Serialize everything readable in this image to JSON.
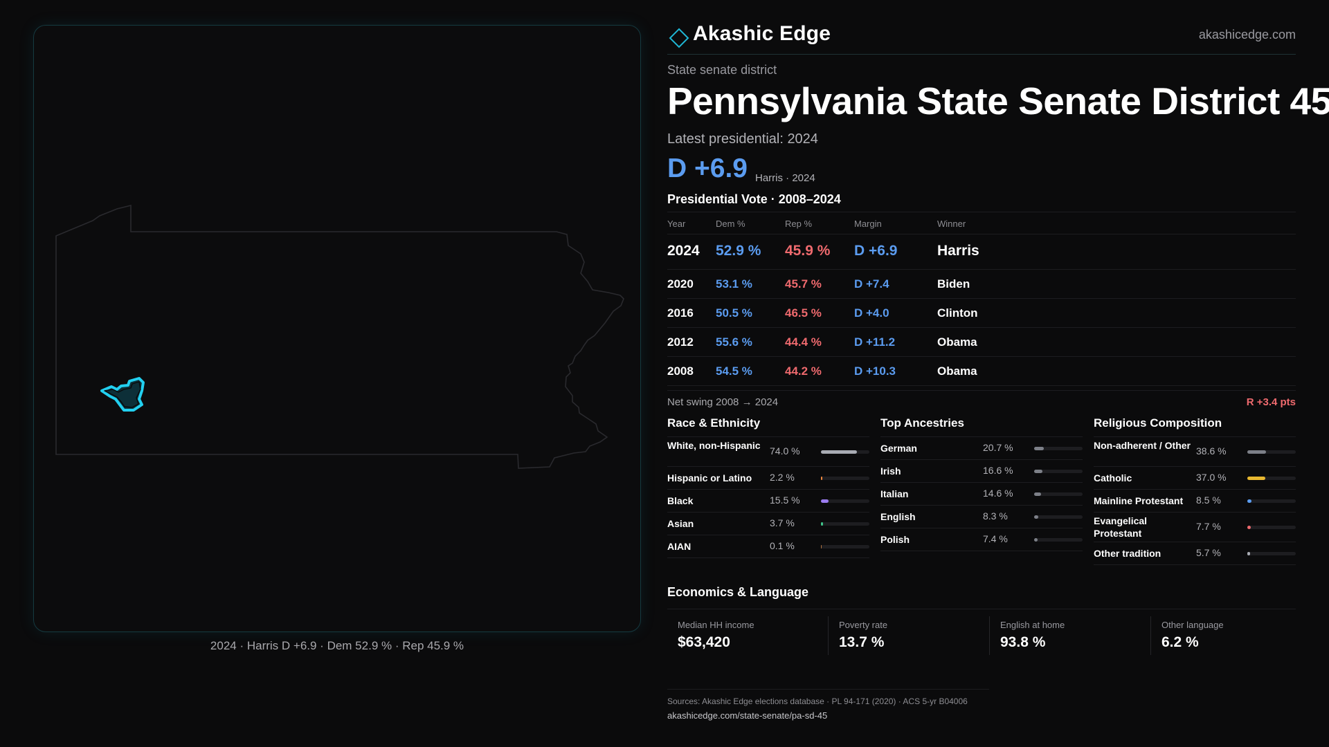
{
  "brand": {
    "name": "Akashic Edge",
    "url": "akashicedge.com",
    "accent": "#1fb6d4"
  },
  "map": {
    "caption": "2024 · Harris D +6.9 · Dem 52.9 % · Rep 45.9 %",
    "highlight_color": "#22d0f0"
  },
  "header": {
    "kicker": "State senate district",
    "title": "Pennsylvania State Senate District 45",
    "latest_label": "Latest presidential: 2024",
    "margin": "D +6.9",
    "margin_sub": "Harris · 2024"
  },
  "vote_table": {
    "title": "Presidential Vote · 2008–2024",
    "columns": [
      "Year",
      "Dem %",
      "Rep %",
      "Margin",
      "Winner"
    ],
    "rows": [
      [
        "2024",
        "52.9 %",
        "45.9 %",
        "D +6.9",
        "Harris"
      ],
      [
        "2020",
        "53.1 %",
        "45.7 %",
        "D +7.4",
        "Biden"
      ],
      [
        "2016",
        "50.5 %",
        "46.5 %",
        "D +4.0",
        "Clinton"
      ],
      [
        "2012",
        "55.6 %",
        "44.4 %",
        "D +11.2",
        "Obama"
      ],
      [
        "2008",
        "54.5 %",
        "44.2 %",
        "D +10.3",
        "Obama"
      ]
    ],
    "swing_label": "Net swing 2008 → 2024",
    "swing_value": "R +3.4 pts"
  },
  "composition": [
    {
      "title": "Race & Ethnicity",
      "rows": [
        {
          "label": "White, non-Hispanic",
          "value": "74.0 %",
          "pct": 74.0,
          "color": "#a8abb3",
          "lines": 2
        },
        {
          "label": "Hispanic or Latino",
          "value": "2.2 %",
          "pct": 2.2,
          "color": "#f0883e",
          "lines": 1
        },
        {
          "label": "Black",
          "value": "15.5 %",
          "pct": 15.5,
          "color": "#9b7cf0",
          "lines": 1
        },
        {
          "label": "Asian",
          "value": "3.7 %",
          "pct": 3.7,
          "color": "#3fc48a",
          "lines": 1
        },
        {
          "label": "AIAN",
          "value": "0.1 %",
          "pct": 0.1,
          "color": "#b0733f",
          "lines": 1
        }
      ]
    },
    {
      "title": "Top Ancestries",
      "rows": [
        {
          "label": "German",
          "value": "20.7 %",
          "pct": 20.7,
          "color": "#7d8088",
          "lines": 1
        },
        {
          "label": "Irish",
          "value": "16.6 %",
          "pct": 16.6,
          "color": "#7d8088",
          "lines": 1
        },
        {
          "label": "Italian",
          "value": "14.6 %",
          "pct": 14.6,
          "color": "#7d8088",
          "lines": 1
        },
        {
          "label": "English",
          "value": "8.3 %",
          "pct": 8.3,
          "color": "#7d8088",
          "lines": 1
        },
        {
          "label": "Polish",
          "value": "7.4 %",
          "pct": 7.4,
          "color": "#7d8088",
          "lines": 1
        }
      ]
    },
    {
      "title": "Religious Composition",
      "rows": [
        {
          "label": "Non-adherent / Other",
          "value": "38.6 %",
          "pct": 38.6,
          "color": "#7d8088",
          "lines": 2
        },
        {
          "label": "Catholic",
          "value": "37.0 %",
          "pct": 37.0,
          "color": "#e8b830",
          "lines": 1
        },
        {
          "label": "Mainline Protestant",
          "value": "8.5 %",
          "pct": 8.5,
          "color": "#5b9cf0",
          "lines": 1
        },
        {
          "label": "Evangelical Protestant",
          "value": "7.7 %",
          "pct": 7.7,
          "color": "#ef6a6e",
          "lines": 2
        },
        {
          "label": "Other tradition",
          "value": "5.7 %",
          "pct": 5.7,
          "color": "#a8abb3",
          "lines": 1
        }
      ]
    }
  ],
  "economics": {
    "title": "Economics & Language",
    "cells": [
      {
        "label": "Median HH income",
        "value": "$63,420"
      },
      {
        "label": "Poverty rate",
        "value": "13.7 %"
      },
      {
        "label": "English at home",
        "value": "93.8 %"
      },
      {
        "label": "Other language",
        "value": "6.2 %"
      }
    ]
  },
  "footer": {
    "sources": "Sources: Akashic Edge elections database · PL 94-171 (2020) · ACS 5-yr B04006",
    "url": "akashicedge.com/state-senate/pa-sd-45"
  }
}
